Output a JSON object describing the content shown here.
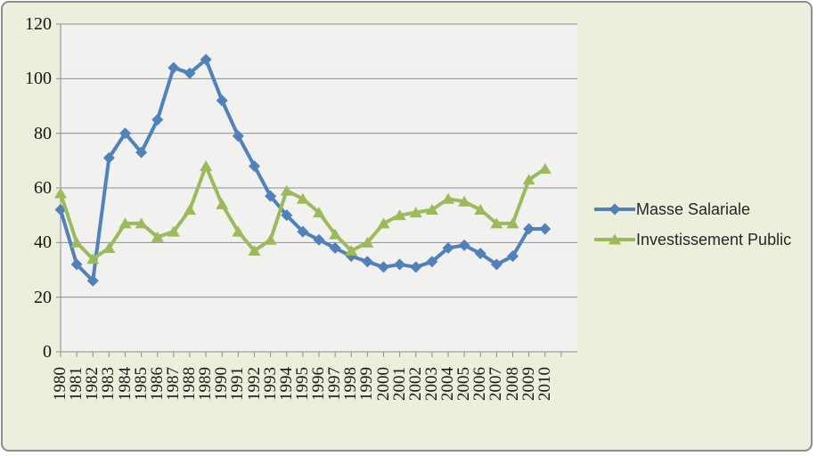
{
  "style": {
    "background_color": "#ebefdb",
    "plot_background_color": "#f1f1f0",
    "gridline_color": "#8d8d8d",
    "axis_color": "#8d8d8d",
    "tick_label_color": "#161616",
    "legend_text_color": "#262626",
    "frame_border_color": "#8b8d8e"
  },
  "chart_data": {
    "type": "line",
    "title": "",
    "xlabel": "",
    "ylabel": "",
    "x": [
      "1980",
      "1981",
      "1982",
      "1983",
      "1984",
      "1985",
      "1986",
      "1987",
      "1988",
      "1989",
      "1990",
      "1991",
      "1992",
      "1993",
      "1994",
      "1995",
      "1996",
      "1997",
      "1998",
      "1999",
      "2000",
      "2001",
      "2002",
      "2003",
      "2004",
      "2005",
      "2006",
      "2007",
      "2008",
      "2009",
      "2010"
    ],
    "series": [
      {
        "name": "Masse Salariale",
        "color": "#4f81bd",
        "marker": "diamond",
        "values": [
          52,
          32,
          26,
          71,
          80,
          73,
          85,
          104,
          102,
          107,
          92,
          79,
          68,
          57,
          50,
          44,
          41,
          38,
          35,
          33,
          31,
          32,
          31,
          33,
          38,
          39,
          36,
          32,
          35,
          45,
          45
        ]
      },
      {
        "name": "Investissement Public",
        "color": "#9bbb59",
        "marker": "triangle",
        "values": [
          58,
          40,
          34,
          38,
          47,
          47,
          42,
          44,
          52,
          68,
          54,
          44,
          37,
          41,
          59,
          56,
          51,
          43,
          37,
          40,
          47,
          50,
          51,
          52,
          56,
          55,
          52,
          47,
          47,
          63,
          67
        ]
      }
    ],
    "ylim": [
      0,
      120
    ],
    "yticks": [
      0,
      20,
      40,
      60,
      80,
      100,
      120
    ],
    "grid": true,
    "legend_position": "right-outside"
  }
}
